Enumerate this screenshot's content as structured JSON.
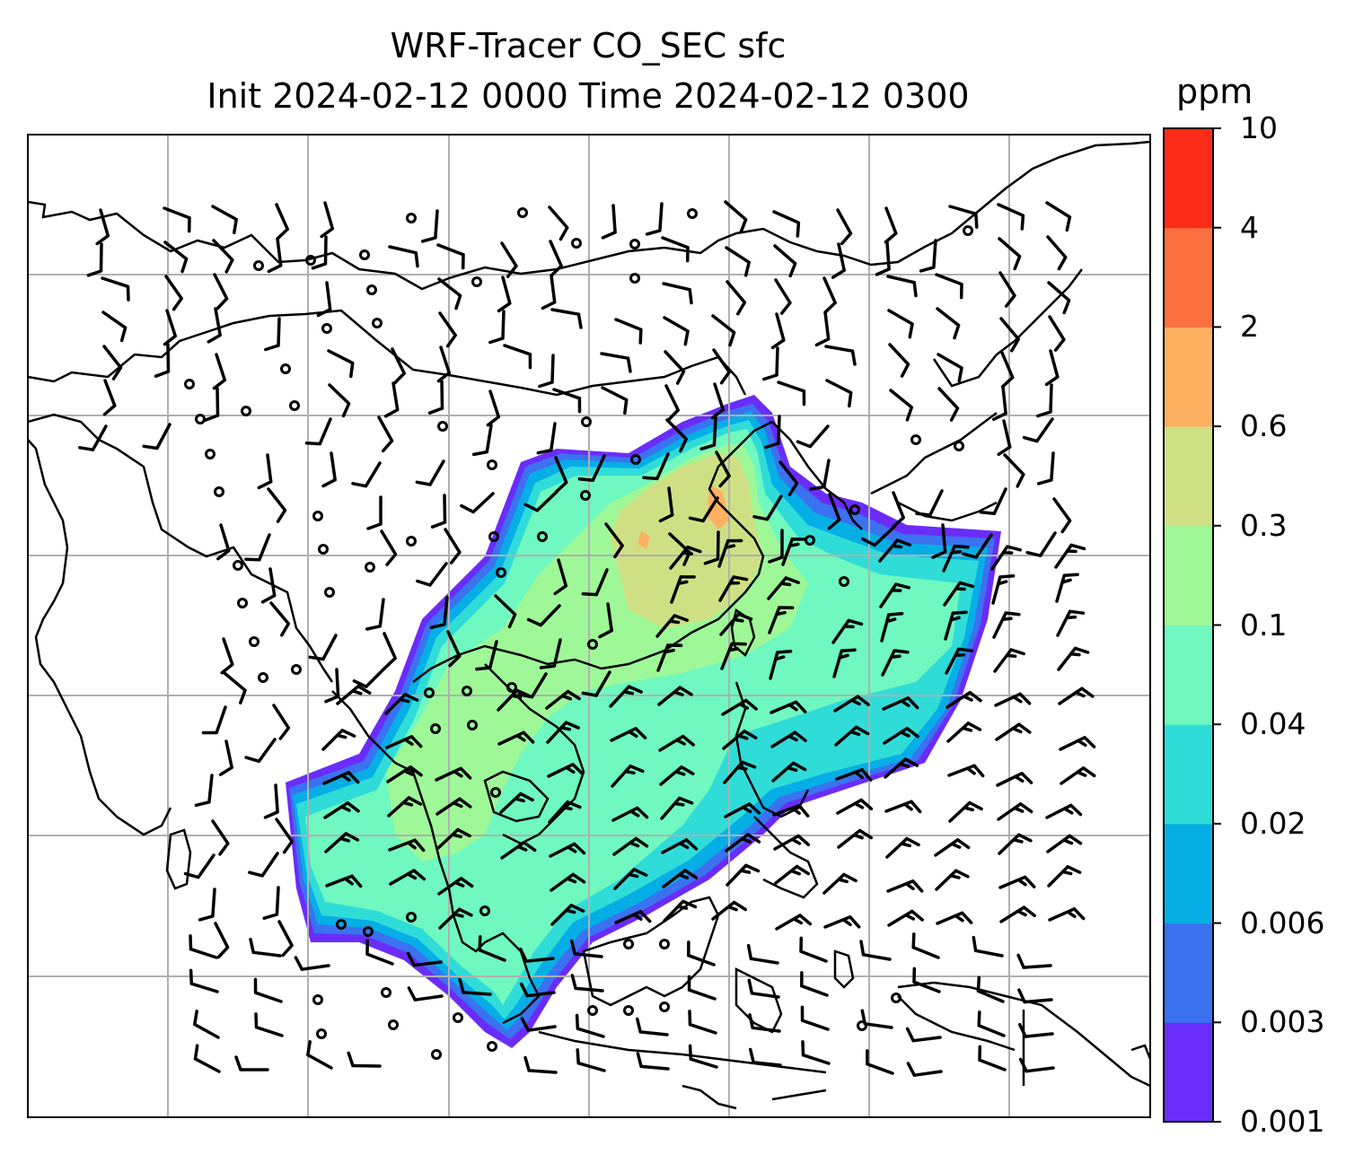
{
  "title": {
    "line1": "WRF-Tracer CO_SEC sfc",
    "line2": "Init 2024-02-12 0000 Time 2024-02-12 0300"
  },
  "colorbar": {
    "units": "ppm",
    "levels": [
      "0.001",
      "0.003",
      "0.006",
      "0.02",
      "0.04",
      "0.1",
      "0.3",
      "0.6",
      "2",
      "4",
      "10"
    ],
    "colors": [
      "#6a2cf8",
      "#3a72f0",
      "#06aee6",
      "#30dcd8",
      "#6ff8c0",
      "#9ef898",
      "#cfe084",
      "#fcb060",
      "#fd7140",
      "#fd2c18"
    ]
  },
  "colors": {
    "coastline": "#000000",
    "gridline": "#b0b0b0",
    "barb": "#000000",
    "background": "#ffffff"
  }
}
